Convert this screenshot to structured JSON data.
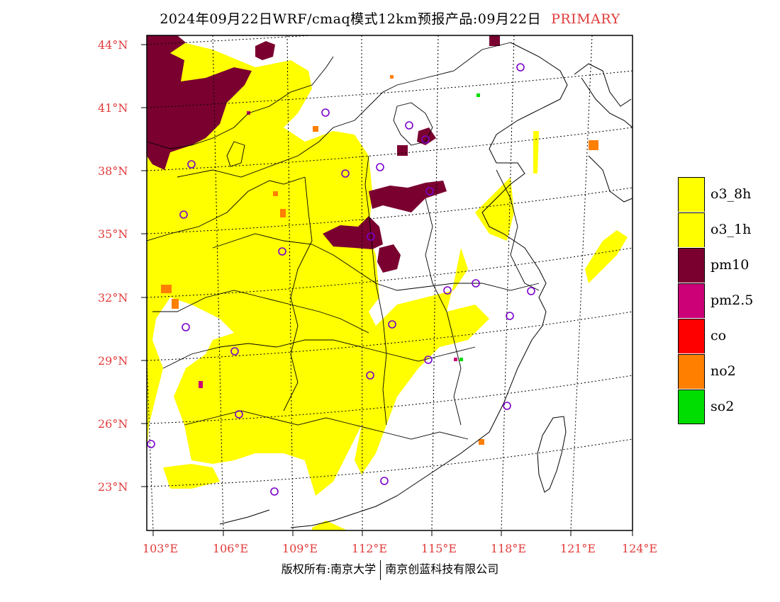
{
  "header": {
    "title": "2024年09月22日WRF/cmaq模式12km预报产品:09月22日",
    "tag": "PRIMARY"
  },
  "map": {
    "lat_labels": [
      "44°N",
      "41°N",
      "38°N",
      "35°N",
      "32°N",
      "29°N",
      "26°N",
      "23°N"
    ],
    "lon_labels": [
      "103°E",
      "106°E",
      "109°E",
      "112°E",
      "115°E",
      "118°E",
      "121°E",
      "124°E"
    ],
    "colors": {
      "o3": "#ffff00",
      "pm10": "#7a0030",
      "pm25": "#cc0077",
      "co": "#ff0000",
      "no2": "#ff7f00",
      "so2": "#00dd00",
      "station": "#7a00cc",
      "border": "#000000",
      "grid": "#000000"
    }
  },
  "legend": {
    "items": [
      {
        "label": "o3_8h",
        "color": "#ffff00"
      },
      {
        "label": "o3_1h",
        "color": "#ffff00"
      },
      {
        "label": "pm10",
        "color": "#7a0030"
      },
      {
        "label": "pm2.5",
        "color": "#cc0077"
      },
      {
        "label": "co",
        "color": "#ff0000"
      },
      {
        "label": "no2",
        "color": "#ff7f00"
      },
      {
        "label": "so2",
        "color": "#00dd00"
      }
    ]
  },
  "footer": {
    "left": "版权所有:南京大学",
    "right": "南京创蓝科技有限公司"
  }
}
